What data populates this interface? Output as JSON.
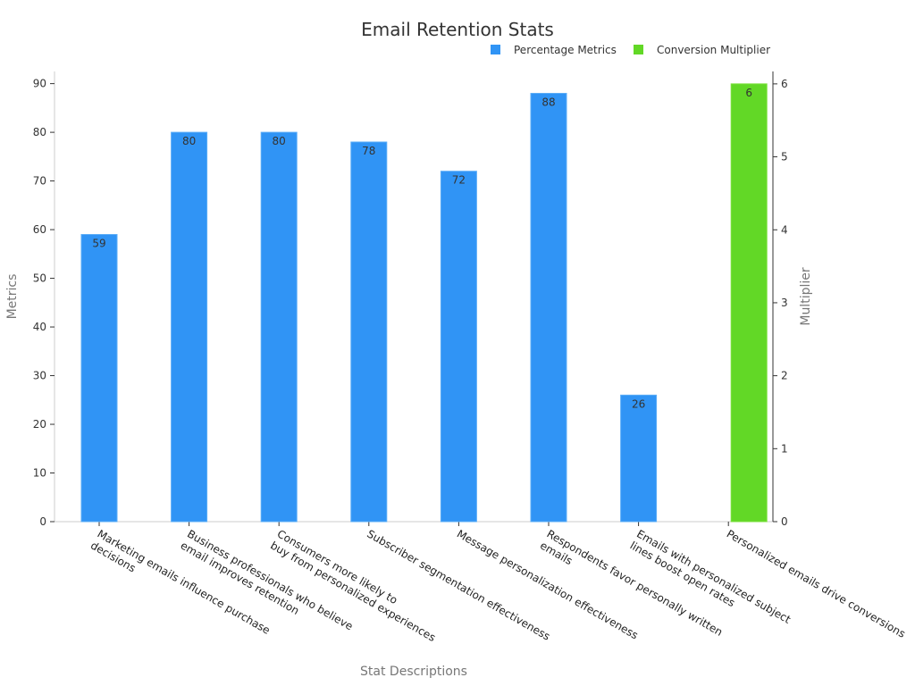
{
  "chart_data": {
    "type": "bar",
    "title": "Email Retention Stats",
    "xlabel": "Stat Descriptions",
    "ylabel": "Metrics",
    "y2label": "Multiplier",
    "ylim": [
      0,
      92.5
    ],
    "y2lim": [
      0,
      6.17
    ],
    "yticks": [
      0,
      10,
      20,
      30,
      40,
      50,
      60,
      70,
      80,
      90
    ],
    "y2ticks": [
      0,
      1,
      2,
      3,
      4,
      5,
      6
    ],
    "grid": false,
    "legend_position": "top-right",
    "categories": [
      [
        "Marketing emails influence purchase",
        "decisions"
      ],
      [
        "Business professionals who believe",
        "email improves retention"
      ],
      [
        "Consumers more likely to",
        "buy from personalized experiences"
      ],
      [
        "Subscriber segmentation effectiveness"
      ],
      [
        "Message personalization effectiveness"
      ],
      [
        "Respondents favor personally written",
        "emails"
      ],
      [
        "Emails with personalized subject",
        "lines boost open rates"
      ],
      [
        "Personalized emails drive conversions"
      ]
    ],
    "series": [
      {
        "name": "Percentage Metrics",
        "axis": "left",
        "color": "#3094f5",
        "values": [
          59,
          80,
          80,
          78,
          72,
          88,
          26,
          null
        ]
      },
      {
        "name": "Conversion Multiplier",
        "axis": "right",
        "color": "#62d826",
        "values": [
          null,
          null,
          null,
          null,
          null,
          null,
          null,
          6
        ]
      }
    ]
  }
}
